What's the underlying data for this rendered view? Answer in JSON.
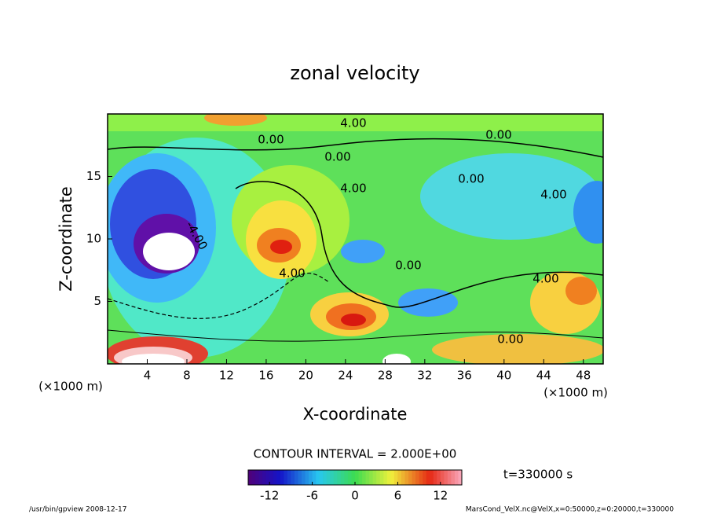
{
  "chart_data": {
    "type": "contour",
    "title": "zonal velocity",
    "x_label": "X-coordinate",
    "y_label": "Z-coordinate",
    "x_unit": "(×1000 m)",
    "xlim": [
      0,
      50
    ],
    "xticks": [
      4,
      8,
      12,
      16,
      20,
      24,
      28,
      32,
      36,
      40,
      44,
      48
    ],
    "ylim": [
      0,
      20
    ],
    "yticks": [
      5,
      10,
      15
    ],
    "contour_labels": [
      "4.00",
      "0.00",
      "0.00",
      "0.00",
      "4.00",
      "-4.00",
      "4.00",
      "4.00",
      "4.00",
      "0.00",
      "0.00",
      "0.00"
    ],
    "contour_interval_text": "CONTOUR INTERVAL = 2.000E+00",
    "time_text": "t=330000 s",
    "colorbar": {
      "lim": [
        -15,
        15
      ],
      "ticks": [
        -12,
        -6,
        0,
        6,
        12
      ]
    },
    "footer_left": "/usr/bin/gpview  2008-12-17",
    "footer_right": "MarsCond_VelX.nc@VelX,x=0:50000,z=0:20000,t=330000"
  }
}
